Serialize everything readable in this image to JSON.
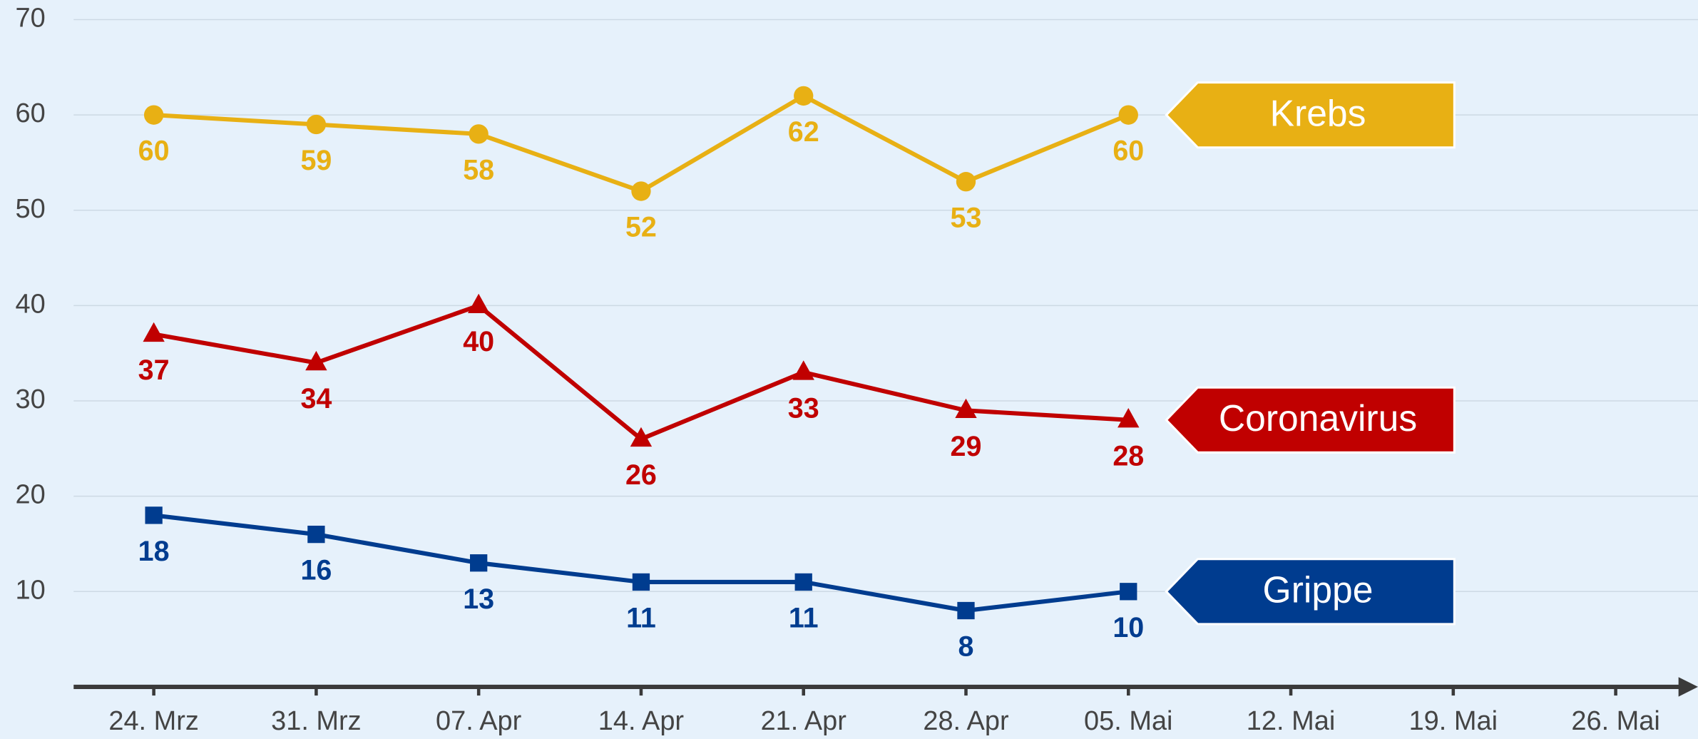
{
  "chart_data": {
    "type": "line",
    "categories": [
      "24. Mrz",
      "31. Mrz",
      "07. Apr",
      "14. Apr",
      "21. Apr",
      "28. Apr",
      "05. Mai",
      "12. Mai",
      "19. Mai",
      "26. Mai"
    ],
    "series": [
      {
        "name": "Krebs",
        "color": "#e8b014",
        "marker": "circle",
        "values": [
          60,
          59,
          58,
          52,
          62,
          53,
          60,
          null,
          null,
          null
        ]
      },
      {
        "name": "Coronavirus",
        "color": "#c00000",
        "marker": "triangle",
        "values": [
          37,
          34,
          40,
          26,
          33,
          29,
          28,
          null,
          null,
          null
        ]
      },
      {
        "name": "Grippe",
        "color": "#003c8f",
        "marker": "square",
        "values": [
          18,
          16,
          13,
          11,
          11,
          8,
          10,
          null,
          null,
          null
        ]
      }
    ],
    "ylim": [
      0,
      70
    ],
    "yticks": [
      10,
      20,
      30,
      40,
      50,
      60,
      70
    ],
    "grid": true
  }
}
